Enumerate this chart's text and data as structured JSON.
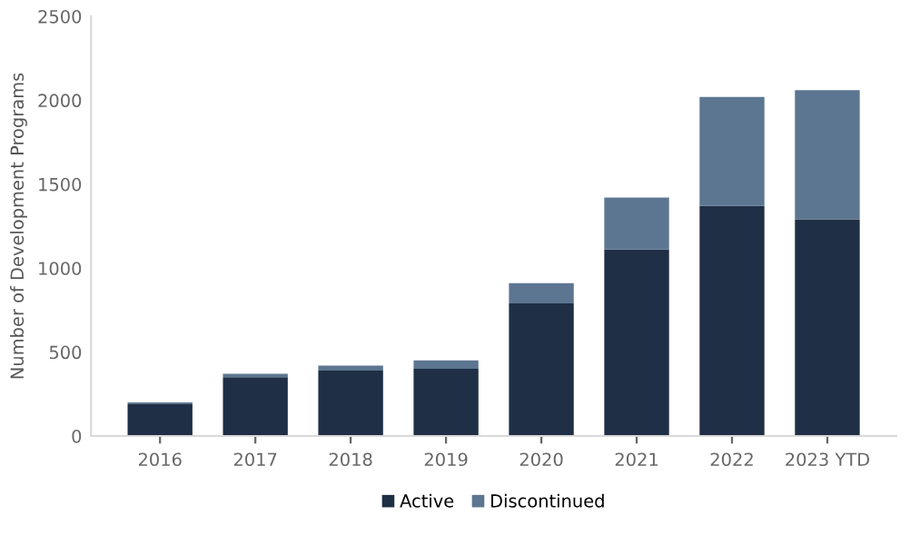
{
  "chart_data": {
    "type": "bar",
    "stacked": true,
    "ylabel": "Number of Development Programs",
    "categories": [
      "2016",
      "2017",
      "2018",
      "2019",
      "2020",
      "2021",
      "2022",
      "2023 YTD"
    ],
    "series": [
      {
        "name": "Active",
        "color": "#1f2f45",
        "values": [
          190,
          350,
          390,
          400,
          790,
          1110,
          1370,
          1290
        ]
      },
      {
        "name": "Discontinued",
        "color": "#5c7691",
        "values": [
          10,
          20,
          30,
          50,
          120,
          310,
          650,
          770
        ]
      }
    ],
    "ylim": [
      0,
      2500
    ],
    "yticks": [
      0,
      500,
      1000,
      1500,
      2000,
      2500
    ],
    "grid": false,
    "legend": "bottom"
  }
}
